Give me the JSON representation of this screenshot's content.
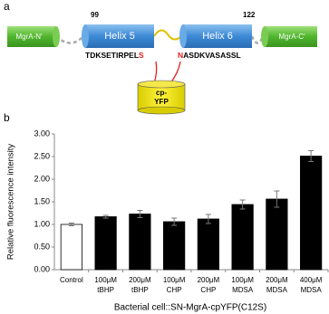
{
  "diagram": {
    "panel": "a",
    "left_domain": "MgrA-N'",
    "right_domain": "MgrA-C'",
    "start_residue": "99",
    "end_residue": "122",
    "helix5": "Helix 5",
    "helix6": "Helix 6",
    "seq5": {
      "main": "TDKSETIRPEL",
      "site": "S"
    },
    "seq6": {
      "site": "N",
      "main": "ASDKVASASSL"
    },
    "insert": [
      "cp-",
      "YFP"
    ]
  },
  "chart_data": {
    "type": "bar",
    "panel": "b",
    "y_label": "Relative fluorescence intensity",
    "x_label": "Bacterial cell::SN-MgrA-cpYFP(C12S)",
    "categories": [
      [
        "Control"
      ],
      [
        "100μM",
        "tBHP"
      ],
      [
        "200μM",
        "tBHP"
      ],
      [
        "100μM",
        "CHP"
      ],
      [
        "200μM",
        "CHP"
      ],
      [
        "100μM",
        "MDSA"
      ],
      [
        "200μM",
        "MDSA"
      ],
      [
        "400μM",
        "MDSA"
      ]
    ],
    "values": [
      1.0,
      1.17,
      1.23,
      1.06,
      1.12,
      1.44,
      1.56,
      2.51
    ],
    "errors": [
      0.03,
      0.03,
      0.08,
      0.08,
      0.1,
      0.1,
      0.18,
      0.12
    ],
    "colors": [
      "#ffffff",
      "#000000",
      "#000000",
      "#000000",
      "#000000",
      "#000000",
      "#000000",
      "#000000"
    ],
    "ylim": [
      0,
      3
    ],
    "yticks": [
      {
        "value": 0,
        "label": "0.00"
      },
      {
        "value": 0.5,
        "label": "0.50"
      },
      {
        "value": 1,
        "label": "1.00"
      },
      {
        "value": 1.5,
        "label": "1.50"
      },
      {
        "value": 2,
        "label": "2.00"
      },
      {
        "value": 2.5,
        "label": "2.50"
      },
      {
        "value": 3,
        "label": "3.00"
      }
    ]
  }
}
